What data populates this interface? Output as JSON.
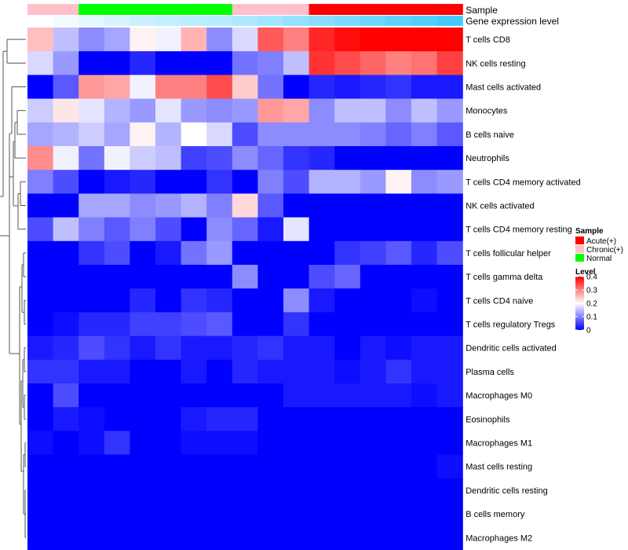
{
  "chart_data": {
    "type": "heatmap",
    "title": "",
    "annotation_labels": {
      "sample": "Sample",
      "expression": "Gene expression level"
    },
    "sample_groups": [
      "Chronic(+)",
      "Chronic(+)",
      "Normal",
      "Normal",
      "Normal",
      "Normal",
      "Normal",
      "Normal",
      "Chronic(+)",
      "Chronic(+)",
      "Chronic(+)",
      "Acute(+)",
      "Acute(+)",
      "Acute(+)",
      "Acute(+)",
      "Acute(+)",
      "Acute(+)"
    ],
    "expression_levels": [
      0.21,
      0.2,
      0.19,
      0.18,
      0.17,
      0.165,
      0.16,
      0.155,
      0.15,
      0.14,
      0.13,
      0.12,
      0.11,
      0.1,
      0.09,
      0.08,
      0.07
    ],
    "rows": [
      "T cells CD8",
      "NK cells resting",
      "Mast cells activated",
      "Monocytes",
      "B cells naive",
      "Neutrophils",
      "T cells CD4 memory activated",
      "NK cells activated",
      "T cells CD4 memory resting",
      "T cells follicular helper",
      "T cells gamma delta",
      "T cells CD4 naive",
      "T cells regulatory  Tregs",
      "Dendritic cells activated",
      "Plasma cells",
      "Macrophages M0",
      "Eosinophils",
      "Macrophages M1",
      "Mast cells resting",
      "Dendritic cells resting",
      "B cells memory",
      "Macrophages M2"
    ],
    "values": [
      [
        0.25,
        0.15,
        0.11,
        0.13,
        0.21,
        0.19,
        0.26,
        0.11,
        0.17,
        0.33,
        0.3,
        0.37,
        0.39,
        0.4,
        0.4,
        0.4,
        0.4
      ],
      [
        0.17,
        0.12,
        0.0,
        0.0,
        0.03,
        0.0,
        0.0,
        0.0,
        0.09,
        0.1,
        0.15,
        0.36,
        0.34,
        0.32,
        0.3,
        0.31,
        0.35
      ],
      [
        0.0,
        0.07,
        0.28,
        0.27,
        0.19,
        0.3,
        0.3,
        0.34,
        0.24,
        0.09,
        0.0,
        0.03,
        0.02,
        0.03,
        0.04,
        0.02,
        0.02
      ],
      [
        0.16,
        0.22,
        0.18,
        0.14,
        0.12,
        0.18,
        0.12,
        0.11,
        0.12,
        0.28,
        0.27,
        0.11,
        0.15,
        0.15,
        0.11,
        0.15,
        0.12
      ],
      [
        0.13,
        0.14,
        0.16,
        0.13,
        0.21,
        0.14,
        0.2,
        0.17,
        0.06,
        0.11,
        0.11,
        0.11,
        0.11,
        0.1,
        0.08,
        0.1,
        0.07
      ],
      [
        0.29,
        0.19,
        0.09,
        0.19,
        0.16,
        0.15,
        0.05,
        0.06,
        0.11,
        0.08,
        0.04,
        0.03,
        0.0,
        0.0,
        0.0,
        0.0,
        0.0
      ],
      [
        0.1,
        0.06,
        0.0,
        0.02,
        0.03,
        0.0,
        0.0,
        0.04,
        0.0,
        0.1,
        0.06,
        0.14,
        0.14,
        0.12,
        0.21,
        0.11,
        0.12
      ],
      [
        0.0,
        0.0,
        0.13,
        0.13,
        0.11,
        0.12,
        0.14,
        0.1,
        0.23,
        0.07,
        0.0,
        0.0,
        0.0,
        0.0,
        0.0,
        0.0,
        0.0
      ],
      [
        0.06,
        0.15,
        0.1,
        0.07,
        0.1,
        0.06,
        0.0,
        0.11,
        0.08,
        0.02,
        0.18,
        0.0,
        0.0,
        0.0,
        0.0,
        0.0,
        0.0
      ],
      [
        0.0,
        0.0,
        0.04,
        0.06,
        0.0,
        0.02,
        0.09,
        0.12,
        0.0,
        0.0,
        0.0,
        0.0,
        0.04,
        0.05,
        0.07,
        0.03,
        0.06
      ],
      [
        0.0,
        0.0,
        0.0,
        0.0,
        0.0,
        0.0,
        0.0,
        0.0,
        0.11,
        0.0,
        0.0,
        0.06,
        0.08,
        0.0,
        0.0,
        0.0,
        0.0
      ],
      [
        0.0,
        0.0,
        0.0,
        0.0,
        0.03,
        0.0,
        0.04,
        0.03,
        0.0,
        0.0,
        0.11,
        0.02,
        0.0,
        0.0,
        0.0,
        0.01,
        0.0
      ],
      [
        0.0,
        0.01,
        0.03,
        0.03,
        0.05,
        0.05,
        0.06,
        0.07,
        0.0,
        0.0,
        0.04,
        0.0,
        0.0,
        0.0,
        0.0,
        0.0,
        0.0
      ],
      [
        0.02,
        0.03,
        0.06,
        0.04,
        0.02,
        0.04,
        0.02,
        0.02,
        0.03,
        0.04,
        0.02,
        0.02,
        0.0,
        0.02,
        0.01,
        0.02,
        0.02
      ],
      [
        0.04,
        0.04,
        0.02,
        0.02,
        0.0,
        0.0,
        0.02,
        0.0,
        0.03,
        0.02,
        0.02,
        0.02,
        0.01,
        0.02,
        0.04,
        0.02,
        0.02
      ],
      [
        0.0,
        0.06,
        0.0,
        0.0,
        0.0,
        0.0,
        0.0,
        0.0,
        0.0,
        0.0,
        0.02,
        0.02,
        0.02,
        0.02,
        0.02,
        0.01,
        0.02
      ],
      [
        0.0,
        0.02,
        0.01,
        0.0,
        0.0,
        0.0,
        0.02,
        0.03,
        0.03,
        0.0,
        0.0,
        0.0,
        0.0,
        0.0,
        0.0,
        0.0,
        0.0
      ],
      [
        0.01,
        0.0,
        0.01,
        0.04,
        0.0,
        0.0,
        0.01,
        0.01,
        0.01,
        0.0,
        0.0,
        0.0,
        0.0,
        0.0,
        0.0,
        0.0,
        0.0
      ],
      [
        0.0,
        0.0,
        0.0,
        0.0,
        0.0,
        0.0,
        0.0,
        0.0,
        0.0,
        0.0,
        0.0,
        0.0,
        0.0,
        0.0,
        0.0,
        0.0,
        0.01
      ],
      [
        0.0,
        0.0,
        0.0,
        0.0,
        0.0,
        0.0,
        0.0,
        0.0,
        0.0,
        0.0,
        0.0,
        0.0,
        0.0,
        0.0,
        0.0,
        0.0,
        0.0
      ],
      [
        0.0,
        0.0,
        0.0,
        0.0,
        0.0,
        0.0,
        0.0,
        0.0,
        0.0,
        0.0,
        0.0,
        0.0,
        0.0,
        0.0,
        0.0,
        0.0,
        0.0
      ],
      [
        0.0,
        0.0,
        0.0,
        0.0,
        0.0,
        0.0,
        0.0,
        0.0,
        0.0,
        0.0,
        0.0,
        0.0,
        0.0,
        0.0,
        0.0,
        0.0,
        0.0
      ]
    ],
    "legend": {
      "sample_title": "Sample",
      "sample_entries": [
        {
          "label": "Acute(+)",
          "color": "#ff0000"
        },
        {
          "label": "Chronic(+)",
          "color": "#ffc0cb"
        },
        {
          "label": "Normal",
          "color": "#00ff00"
        }
      ],
      "level_title": "Level",
      "level_ticks": [
        "0.4",
        "0.3",
        "0.2",
        "0.1",
        "0"
      ],
      "level_tick_values": [
        0.4,
        0.3,
        0.2,
        0.1,
        0
      ],
      "color_range": [
        0,
        0.4
      ],
      "color_low": "#0000ff",
      "color_mid": "#ffffff",
      "color_high": "#ff0000",
      "expression_low": "#ffffff",
      "expression_high": "#44ccff"
    }
  }
}
